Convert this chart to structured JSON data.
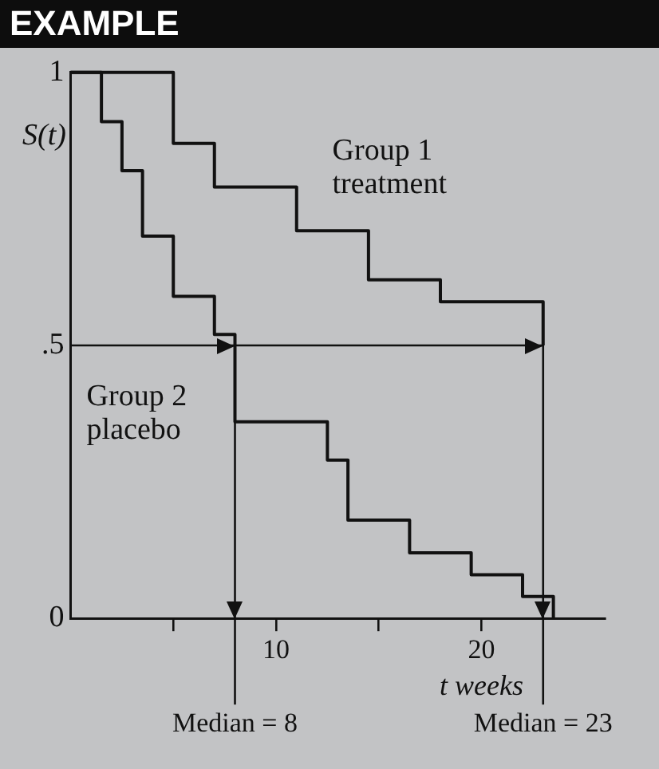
{
  "chart_data": {
    "type": "step",
    "title": "EXAMPLE",
    "xlabel": "t weeks",
    "ylabel": "S(t)",
    "xlim": [
      0,
      26
    ],
    "xticks": [
      {
        "value": 5,
        "label": null
      },
      10,
      {
        "value": 15,
        "label": null
      },
      20
    ],
    "ylim": [
      0,
      1
    ],
    "yticks": [
      0,
      {
        "value": 0.5,
        "label": ".5"
      },
      1
    ],
    "grid": false,
    "legend": false,
    "marker": "none",
    "line_style": "solid",
    "series": [
      {
        "name": "Group 1 treatment",
        "color": "#111111",
        "x": [
          0,
          5,
          7,
          11,
          14.5,
          18,
          23
        ],
        "values": [
          1,
          0.87,
          0.79,
          0.71,
          0.62,
          0.58,
          0.5
        ]
      },
      {
        "name": "Group 2 placebo",
        "color": "#111111",
        "x": [
          0,
          1.5,
          2.5,
          3.5,
          5,
          7,
          8,
          12.5,
          13.5,
          16.5,
          19.5,
          22,
          23.5
        ],
        "values": [
          1,
          0.91,
          0.82,
          0.7,
          0.59,
          0.52,
          0.36,
          0.29,
          0.18,
          0.12,
          0.08,
          0.04,
          0
        ]
      }
    ],
    "ref_lines": [
      {
        "axis": "y",
        "value": 0.5,
        "color": "#111111"
      },
      {
        "axis": "x",
        "value": 8,
        "label": "Median = 8",
        "color": "#111111"
      },
      {
        "axis": "x",
        "value": 23,
        "label": "Median = 23",
        "color": "#111111"
      }
    ]
  }
}
